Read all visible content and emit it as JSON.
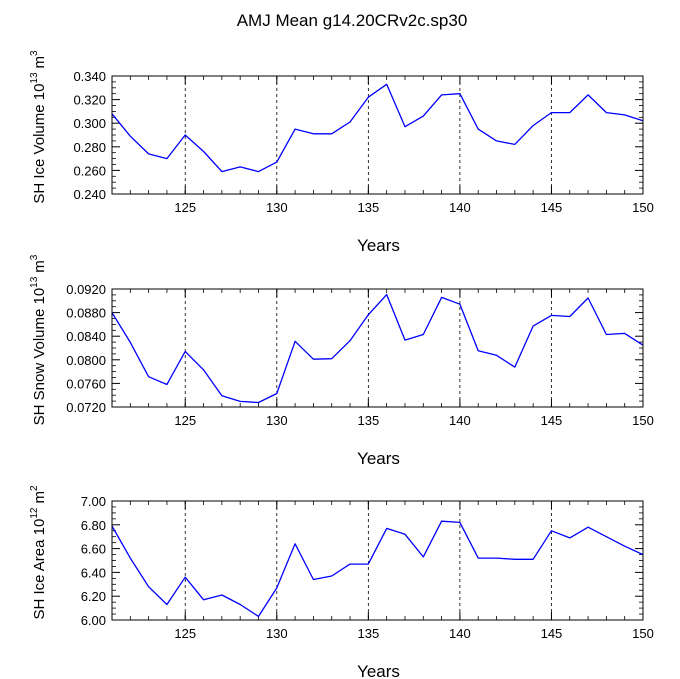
{
  "chart_data": {
    "title": "AMJ Mean g14.20CRv2c.sp30",
    "type": "line",
    "line_color": "#0000ff",
    "x": [
      121,
      122,
      123,
      124,
      125,
      126,
      127,
      128,
      129,
      130,
      131,
      132,
      133,
      134,
      135,
      136,
      137,
      138,
      139,
      140,
      141,
      142,
      143,
      144,
      145,
      146,
      147,
      148,
      149,
      150
    ],
    "xlim": [
      121,
      150
    ],
    "xticks": [
      "125",
      "130",
      "135",
      "140",
      "145",
      "150"
    ],
    "xlabel": "Years",
    "panels": [
      {
        "name": "ice-volume",
        "ylabel_text": "SH Ice Volume 10",
        "ylabel_exp": "13",
        "ylabel_unit": "m",
        "ylabel_unit_exp": "3",
        "ylim": [
          0.24,
          0.34
        ],
        "yticks": [
          "0.240",
          "0.260",
          "0.280",
          "0.300",
          "0.320",
          "0.340"
        ],
        "values": [
          0.308,
          0.289,
          0.274,
          0.27,
          0.29,
          0.276,
          0.259,
          0.263,
          0.259,
          0.267,
          0.295,
          0.291,
          0.291,
          0.301,
          0.322,
          0.333,
          0.297,
          0.306,
          0.324,
          0.325,
          0.295,
          0.285,
          0.282,
          0.298,
          0.309,
          0.309,
          0.324,
          0.309,
          0.307,
          0.302
        ]
      },
      {
        "name": "snow-volume",
        "ylabel_text": "SH Snow Volume 10",
        "ylabel_exp": "13",
        "ylabel_unit": "m",
        "ylabel_unit_exp": "3",
        "ylim": [
          0.072,
          0.093
        ],
        "yticks": [
          "0.0720",
          "0.0760",
          "0.0800",
          "0.0840",
          "0.0880",
          "0.0920"
        ],
        "values": [
          0.0888,
          0.0835,
          0.0774,
          0.076,
          0.0819,
          0.0786,
          0.074,
          0.073,
          0.0728,
          0.0744,
          0.0837,
          0.0805,
          0.0806,
          0.0838,
          0.0884,
          0.092,
          0.0839,
          0.0849,
          0.0915,
          0.0903,
          0.082,
          0.0812,
          0.0791,
          0.0864,
          0.0883,
          0.0881,
          0.0914,
          0.0849,
          0.0851,
          0.083
        ]
      },
      {
        "name": "ice-area",
        "ylabel_text": "SH Ice Area 10",
        "ylabel_exp": "12",
        "ylabel_unit": "m",
        "ylabel_unit_exp": "2",
        "ylim": [
          6.0,
          7.0
        ],
        "yticks": [
          "6.00",
          "6.20",
          "6.40",
          "6.60",
          "6.80",
          "7.00"
        ],
        "values": [
          6.79,
          6.52,
          6.28,
          6.13,
          6.36,
          6.17,
          6.21,
          6.13,
          6.03,
          6.27,
          6.64,
          6.34,
          6.37,
          6.47,
          6.47,
          6.77,
          6.72,
          6.53,
          6.83,
          6.82,
          6.52,
          6.52,
          6.51,
          6.51,
          6.75,
          6.69,
          6.78,
          6.7,
          6.62,
          6.55
        ]
      }
    ]
  }
}
